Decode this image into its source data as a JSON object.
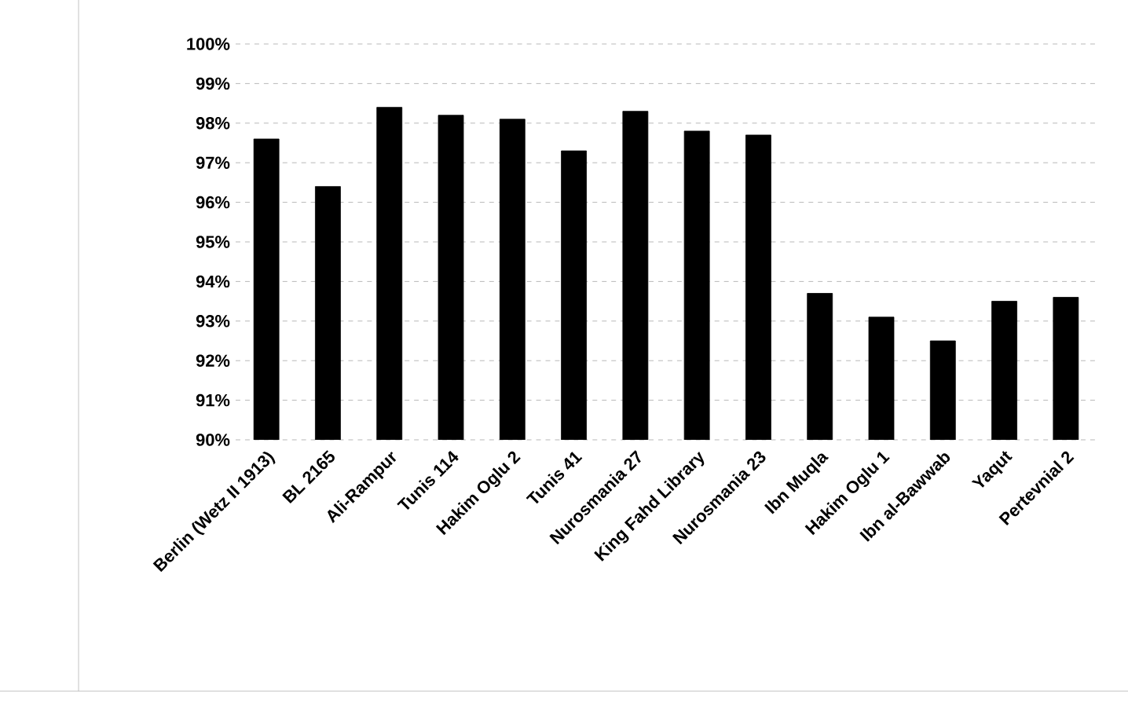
{
  "chart_data": {
    "type": "bar",
    "categories": [
      "Berlin (Wetz II 1913)",
      "BL 2165",
      "Ali-Rampur",
      "Tunis 114",
      "Hakim Oglu 2",
      "Tunis 41",
      "Nurosmania 27",
      "King Fahd Library",
      "Nurosmania 23",
      "Ibn Muqla",
      "Hakim Oglu 1",
      "Ibn al-Bawwab",
      "Yaqut",
      "Pertevnial 2"
    ],
    "values": [
      97.6,
      96.4,
      98.4,
      98.2,
      98.1,
      97.3,
      98.3,
      97.8,
      97.7,
      93.7,
      93.1,
      92.5,
      93.5,
      93.6
    ],
    "color": "#000000",
    "ylim": [
      90,
      100
    ],
    "yticks": [
      {
        "value": 90,
        "label": "90%"
      },
      {
        "value": 91,
        "label": "91%"
      },
      {
        "value": 92,
        "label": "92%"
      },
      {
        "value": 93,
        "label": "93%"
      },
      {
        "value": 94,
        "label": "94%"
      },
      {
        "value": 95,
        "label": "95%"
      },
      {
        "value": 96,
        "label": "96%"
      },
      {
        "value": 97,
        "label": "97%"
      },
      {
        "value": 98,
        "label": "98%"
      },
      {
        "value": 99,
        "label": "99%"
      },
      {
        "value": 100,
        "label": "100%"
      }
    ],
    "grid": "y"
  }
}
